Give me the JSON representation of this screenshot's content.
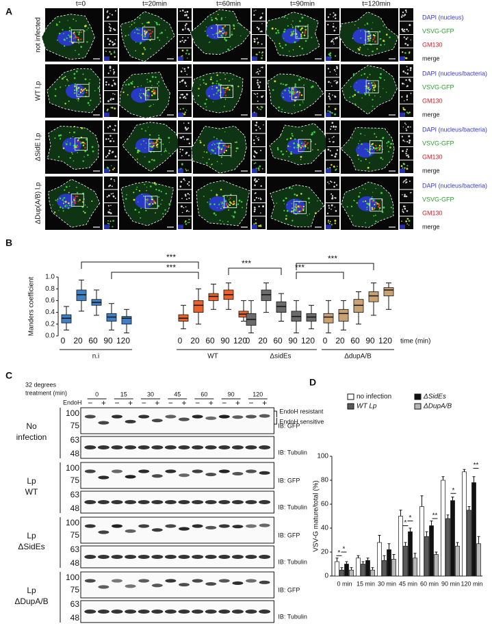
{
  "panel_a": {
    "letter": "A",
    "columns": [
      "t=0",
      "t=20min",
      "t=60min",
      "t=90min",
      "t=120min"
    ],
    "rows": [
      {
        "label": "not infected",
        "channels": [
          "DAPI (nucleus)",
          "VSVG-GFP",
          "GM130",
          "merge"
        ]
      },
      {
        "label": "WT l.p",
        "channels": [
          "DAPI (nucleus/bacteria)",
          "VSVG-GFP",
          "GM130",
          "merge"
        ]
      },
      {
        "label": "ΔSidE l.p",
        "channels": [
          "DAPI (nucleus/bacteria)",
          "VSVG-GFP",
          "GM130",
          "merge"
        ]
      },
      {
        "label": "ΔDup(A/B) l.p",
        "channels": [
          "DAPI (nucleus/bacteria)",
          "VSVG-GFP",
          "GM130",
          "merge"
        ]
      }
    ]
  },
  "chart_data": [
    {
      "type": "box",
      "panel": "B",
      "ylabel": "Manders coefficient",
      "xlabel": "time (min)",
      "ylim": [
        0,
        1
      ],
      "yticks": [
        {
          "value": 0,
          "label": "0.0"
        },
        {
          "value": 0.2,
          "label": "0.2"
        },
        {
          "value": 0.4,
          "label": "0.4"
        },
        {
          "value": 0.6,
          "label": "0.6"
        },
        {
          "value": 0.8,
          "label": "0.8"
        },
        {
          "value": 1,
          "label": "1.0"
        }
      ],
      "groups": [
        {
          "name": "n.i",
          "color": "#3f7fc4",
          "categories": [
            "0",
            "20",
            "60",
            "90",
            "120"
          ],
          "boxes": [
            {
              "low": 0.1,
              "q1": 0.22,
              "median": 0.3,
              "q3": 0.36,
              "high": 0.5
            },
            {
              "low": 0.42,
              "q1": 0.6,
              "median": 0.7,
              "q3": 0.78,
              "high": 0.95
            },
            {
              "low": 0.35,
              "q1": 0.52,
              "median": 0.57,
              "q3": 0.62,
              "high": 0.78
            },
            {
              "low": 0.1,
              "q1": 0.25,
              "median": 0.32,
              "q3": 0.38,
              "high": 0.55
            },
            {
              "low": 0.05,
              "q1": 0.2,
              "median": 0.3,
              "q3": 0.33,
              "high": 0.45
            }
          ]
        },
        {
          "name": "WT",
          "color": "#e8622a",
          "categories": [
            "0",
            "20",
            "60",
            "90",
            "120"
          ],
          "boxes": [
            {
              "low": 0.12,
              "q1": 0.25,
              "median": 0.3,
              "q3": 0.36,
              "high": 0.52
            },
            {
              "low": 0.2,
              "q1": 0.4,
              "median": 0.52,
              "q3": 0.6,
              "high": 0.8
            },
            {
              "low": 0.45,
              "q1": 0.6,
              "median": 0.67,
              "q3": 0.72,
              "high": 0.88
            },
            {
              "low": 0.45,
              "q1": 0.62,
              "median": 0.7,
              "q3": 0.78,
              "high": 0.9
            },
            {
              "low": 0.25,
              "q1": 0.32,
              "median": 0.37,
              "q3": 0.42,
              "high": 0.6
            }
          ]
        },
        {
          "name": "ΔsidEs",
          "color": "#6b6b6b",
          "categories": [
            "0",
            "20",
            "60",
            "90",
            "120"
          ],
          "boxes": [
            {
              "low": 0.05,
              "q1": 0.18,
              "median": 0.28,
              "q3": 0.38,
              "high": 0.6
            },
            {
              "low": 0.4,
              "q1": 0.6,
              "median": 0.7,
              "q3": 0.78,
              "high": 0.9
            },
            {
              "low": 0.25,
              "q1": 0.4,
              "median": 0.5,
              "q3": 0.58,
              "high": 0.72
            },
            {
              "low": 0.05,
              "q1": 0.25,
              "median": 0.33,
              "q3": 0.42,
              "high": 0.6
            },
            {
              "low": 0.12,
              "q1": 0.25,
              "median": 0.32,
              "q3": 0.38,
              "high": 0.52
            }
          ]
        },
        {
          "name": "ΔdupA/B",
          "color": "#c9a274",
          "categories": [
            "0",
            "20",
            "60",
            "90",
            "120"
          ],
          "boxes": [
            {
              "low": 0.05,
              "q1": 0.22,
              "median": 0.32,
              "q3": 0.38,
              "high": 0.6
            },
            {
              "low": 0.1,
              "q1": 0.25,
              "median": 0.38,
              "q3": 0.45,
              "high": 0.6
            },
            {
              "low": 0.2,
              "q1": 0.4,
              "median": 0.52,
              "q3": 0.62,
              "high": 0.75
            },
            {
              "low": 0.35,
              "q1": 0.58,
              "median": 0.68,
              "q3": 0.75,
              "high": 0.9
            },
            {
              "low": 0.45,
              "q1": 0.68,
              "median": 0.78,
              "q3": 0.82,
              "high": 0.9
            }
          ]
        }
      ],
      "significance": [
        "***",
        "***",
        "***",
        "***",
        "***"
      ]
    },
    {
      "type": "bar",
      "panel": "D",
      "ylabel": "VSV-G  mature/total (%)",
      "categories": [
        "0 min",
        "15 min",
        "30 min",
        "45 min",
        "60 min",
        "90 min",
        "120 min"
      ],
      "ylim": [
        0,
        100
      ],
      "yticks": [
        0,
        20,
        40,
        60,
        80,
        100
      ],
      "series": [
        {
          "name": "no infection",
          "color": "#ffffff",
          "values": [
            12,
            15,
            28,
            50,
            58,
            80,
            87
          ],
          "errors": [
            3,
            2,
            6,
            5,
            9,
            3,
            2
          ]
        },
        {
          "name": "WT Lp",
          "color": "#5a5a5a",
          "values": [
            5,
            10,
            13,
            25,
            33,
            48,
            55
          ],
          "errors": [
            2,
            2,
            4,
            3,
            4,
            3,
            3
          ]
        },
        {
          "name": "ΔSidEs",
          "color": "#111111",
          "values": [
            10,
            13,
            22,
            37,
            42,
            63,
            78
          ],
          "errors": [
            2,
            2,
            5,
            3,
            4,
            3,
            5
          ]
        },
        {
          "name": "ΔDupA/B",
          "color": "#b8b8b8",
          "values": [
            5,
            5,
            14,
            15,
            18,
            25,
            27
          ],
          "errors": [
            2,
            2,
            4,
            4,
            2,
            3,
            6
          ]
        }
      ],
      "significance": [
        "*",
        "*",
        "*",
        "*",
        "**",
        "*",
        "**"
      ]
    }
  ],
  "panel_c": {
    "letter": "C",
    "treatment_label": [
      "32 degrees",
      "treatment (min)"
    ],
    "times": [
      "0",
      "15",
      "30",
      "45",
      "60",
      "90",
      "120"
    ],
    "endoh_label": "EndoH",
    "minus": "−",
    "plus": "+",
    "conditions": [
      {
        "label": [
          "No",
          "infection"
        ]
      },
      {
        "label": [
          "Lp",
          "WT"
        ]
      },
      {
        "label": [
          "Lp",
          "ΔSidEs"
        ]
      },
      {
        "label": [
          "Lp",
          "ΔDupA/B"
        ]
      }
    ],
    "markers_gfp": [
      "100",
      "75"
    ],
    "markers_tubulin": [
      "63",
      "48"
    ],
    "ib_gfp": "IB: GFP",
    "ib_tubulin": "IB: Tubulin",
    "band_labels": [
      "EndoH resistant",
      "EndoH sensitive"
    ]
  }
}
